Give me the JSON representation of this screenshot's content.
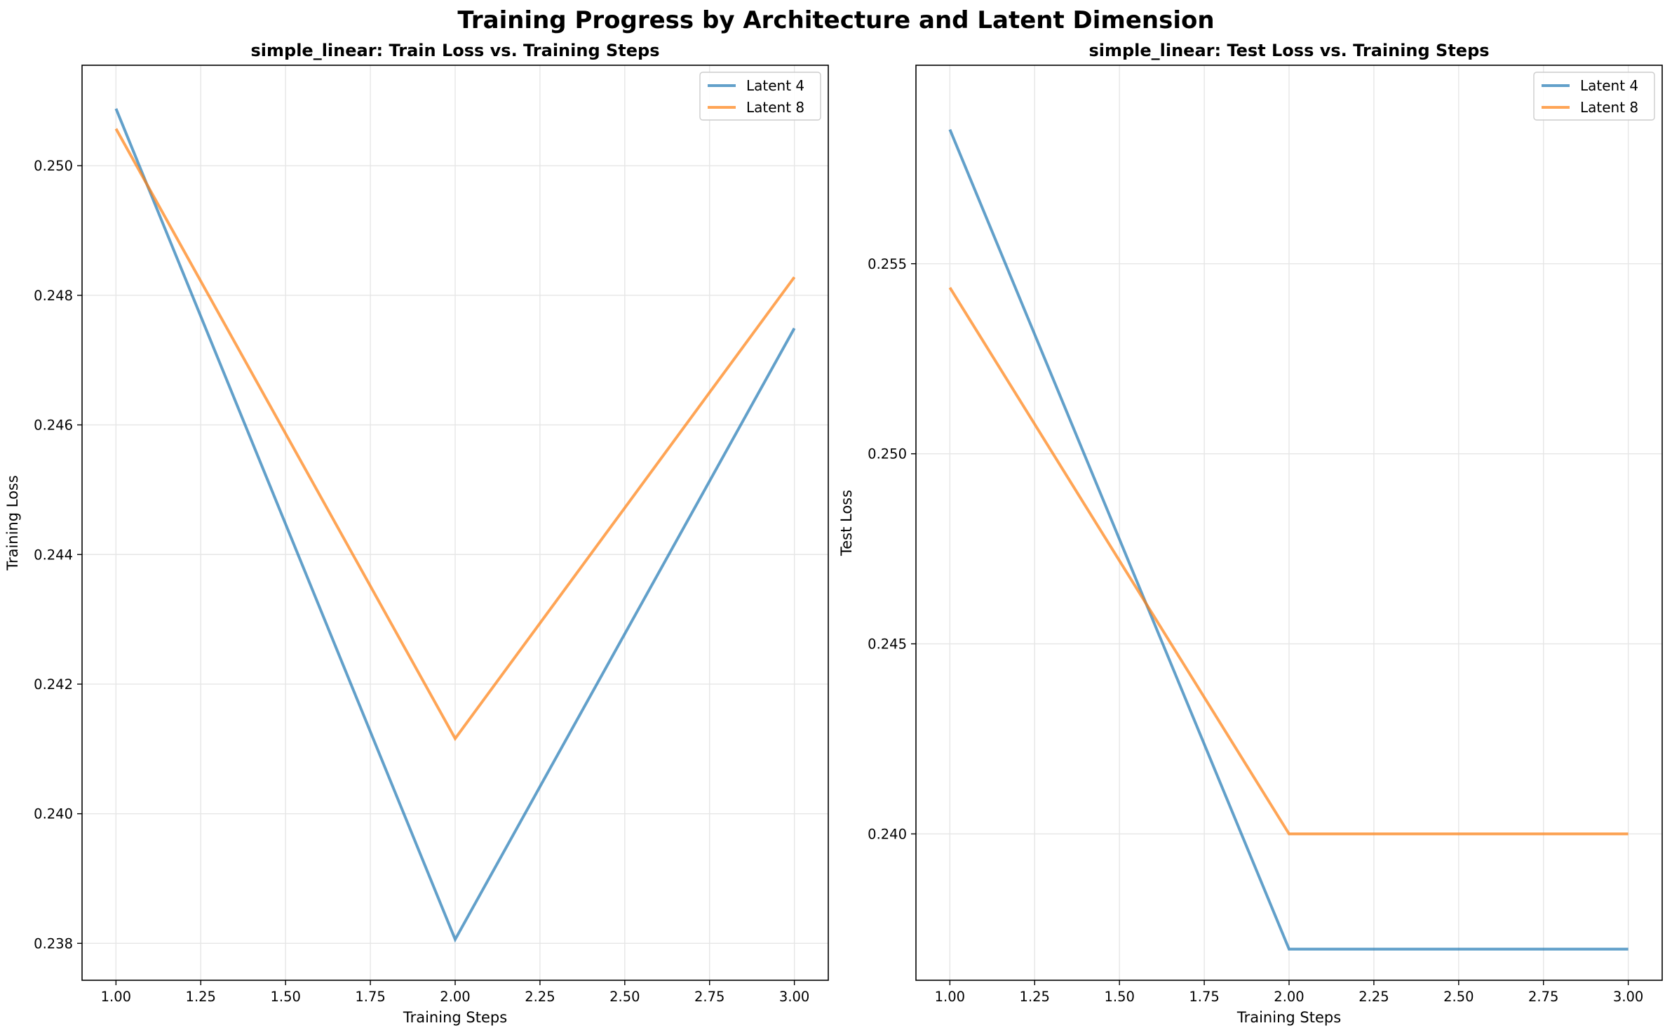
{
  "figure": {
    "suptitle": "Training Progress by Architecture and Latent Dimension"
  },
  "colors": {
    "latent4": "#1f77b4",
    "latent8": "#ff7f0e",
    "grid": "#e6e6e6",
    "axes": "#000000"
  },
  "chart_data": [
    {
      "type": "line",
      "title": "simple_linear: Train Loss vs. Training Steps",
      "xlabel": "Training Steps",
      "ylabel": "Training Loss",
      "xlim": [
        0.9,
        3.1
      ],
      "ylim": [
        0.23743,
        0.25155
      ],
      "xticks": [
        1.0,
        1.25,
        1.5,
        1.75,
        2.0,
        2.25,
        2.5,
        2.75,
        3.0
      ],
      "xtick_labels": [
        "1.00",
        "1.25",
        "1.50",
        "1.75",
        "2.00",
        "2.25",
        "2.50",
        "2.75",
        "3.00"
      ],
      "yticks": [
        0.238,
        0.24,
        0.242,
        0.244,
        0.246,
        0.248,
        0.25
      ],
      "ytick_labels": [
        "0.238",
        "0.240",
        "0.242",
        "0.244",
        "0.246",
        "0.248",
        "0.250"
      ],
      "grid": true,
      "legend_position": "top-right",
      "series": [
        {
          "name": "Latent 4",
          "color_key": "latent4",
          "x": [
            1,
            2,
            3
          ],
          "y": [
            0.25088,
            0.23806,
            0.24749
          ]
        },
        {
          "name": "Latent 8",
          "color_key": "latent8",
          "x": [
            1,
            2,
            3
          ],
          "y": [
            0.25057,
            0.24116,
            0.24828
          ]
        }
      ]
    },
    {
      "type": "line",
      "title": "simple_linear: Test Loss vs. Training Steps",
      "xlabel": "Training Steps",
      "ylabel": "Test Loss",
      "xlim": [
        0.9,
        3.1
      ],
      "ylim": [
        0.23615,
        0.26022
      ],
      "xticks": [
        1.0,
        1.25,
        1.5,
        1.75,
        2.0,
        2.25,
        2.5,
        2.75,
        3.0
      ],
      "xtick_labels": [
        "1.00",
        "1.25",
        "1.50",
        "1.75",
        "2.00",
        "2.25",
        "2.50",
        "2.75",
        "3.00"
      ],
      "yticks": [
        0.24,
        0.245,
        0.25,
        0.255
      ],
      "ytick_labels": [
        "0.240",
        "0.245",
        "0.250",
        "0.255"
      ],
      "grid": true,
      "legend_position": "top-right",
      "series": [
        {
          "name": "Latent 4",
          "color_key": "latent4",
          "x": [
            1,
            2,
            3
          ],
          "y": [
            0.25853,
            0.23697,
            0.23697
          ]
        },
        {
          "name": "Latent 8",
          "color_key": "latent8",
          "x": [
            1,
            2,
            3
          ],
          "y": [
            0.25437,
            0.24,
            0.24
          ]
        }
      ]
    }
  ]
}
